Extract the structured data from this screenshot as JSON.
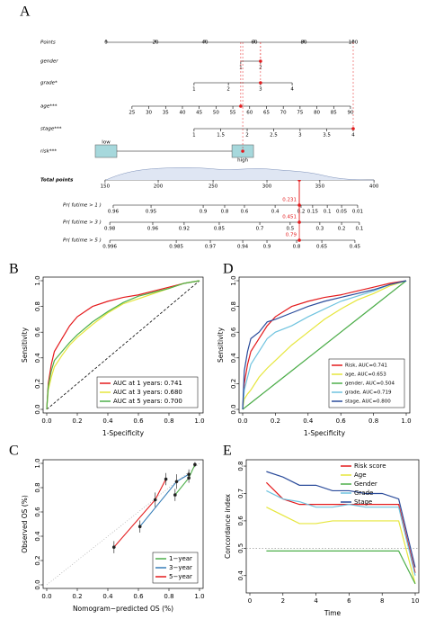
{
  "chart_data": [
    {
      "type": "nomogram",
      "panel": "A",
      "rows": [
        {
          "label": "Points",
          "ticks": [
            0,
            20,
            40,
            60,
            80,
            100
          ],
          "points": [
            0,
            20,
            40,
            60,
            80,
            100
          ]
        },
        {
          "label": "gender",
          "ticks": [
            1,
            2
          ],
          "points": [
            54.5,
            62.5
          ],
          "selected": 62.5
        },
        {
          "label": "grade*",
          "ticks": [
            1,
            2,
            3,
            4
          ],
          "points": [
            35.6,
            49.5,
            62.5,
            75.3
          ],
          "selected": 62.5
        },
        {
          "label": "age***",
          "ticks": [
            25,
            30,
            35,
            40,
            45,
            50,
            55,
            60,
            65,
            70,
            75,
            80,
            85,
            90
          ],
          "points": [
            10.5,
            17.3,
            24.1,
            30.9,
            37.7,
            44.5,
            51.3,
            58.1,
            64.9,
            71.7,
            78.5,
            85.3,
            92.1,
            98.9
          ],
          "selected": 54.5
        },
        {
          "label": "stage***",
          "ticks": [
            1,
            1.5,
            2,
            2.5,
            3,
            3.5,
            4
          ],
          "points": [
            35.6,
            46.4,
            57.1,
            67.8,
            78.5,
            89.3,
            100
          ],
          "selected": 100
        },
        {
          "label": "risk***",
          "ticks": [
            "low",
            "high"
          ],
          "points": [
            0,
            55.3
          ],
          "selected": 55.3,
          "kind": "box"
        },
        {
          "label": "Total points",
          "ticks": [
            150,
            200,
            250,
            300,
            350,
            400
          ],
          "points": [
            -0.4,
            21.1,
            43.3,
            65.1,
            86.5,
            108.4
          ],
          "selected": 78.2
        },
        {
          "label": "Pr( futime > 1 )",
          "ticks": [
            0.96,
            0.95,
            0.9,
            0.8,
            0.6,
            0.4,
            0.2,
            0.15,
            0.1,
            0.05,
            0.01
          ],
          "points": [
            2.9,
            18.2,
            39.3,
            48.0,
            56.0,
            68.4,
            78.9,
            83.6,
            89.5,
            95.3,
            101.8
          ],
          "selected": 78.2,
          "annotation": "0.231"
        },
        {
          "label": "Pr( futime > 3 )",
          "ticks": [
            0.98,
            0.96,
            0.92,
            0.85,
            0.7,
            0.5,
            0.3,
            0.2,
            0.1
          ],
          "points": [
            1.5,
            18.9,
            31.6,
            45.8,
            62.2,
            74.5,
            86.5,
            95.3,
            102.5
          ],
          "selected": 78.2,
          "annotation": "0.451"
        },
        {
          "label": "Pr( futime > 5 )",
          "ticks": [
            0.996,
            0.985,
            0.97,
            0.94,
            0.9,
            0.8,
            0.65,
            0.45
          ],
          "points": [
            1.5,
            28.4,
            42.2,
            55.3,
            65.1,
            77.1,
            87.3,
            100.7
          ],
          "selected": 78.2,
          "annotation": "0.79"
        }
      ]
    },
    {
      "type": "roc",
      "panel": "B",
      "x_label": "1-Specificity",
      "y_label": "Sensitivity",
      "xlim": [
        0,
        1
      ],
      "ylim": [
        0,
        1
      ],
      "xticks": [
        {
          "value": 0,
          "label": "0.0"
        },
        0.2,
        0.4,
        0.6,
        0.8,
        {
          "value": 1,
          "label": "1.0"
        }
      ],
      "yticks": [
        {
          "value": 0,
          "label": "0.0"
        },
        0.2,
        0.4,
        0.6,
        0.8,
        {
          "value": 1,
          "label": "1.0"
        }
      ],
      "diagonal": "dashed",
      "legend": "bottom-right",
      "x": [
        0,
        0.01,
        0.03,
        0.05,
        0.1,
        0.15,
        0.2,
        0.3,
        0.4,
        0.5,
        0.6,
        0.7,
        0.8,
        0.9,
        1
      ],
      "series": [
        {
          "name": "AUC at 1 years: 0.741",
          "color": "#e41a1c",
          "values": [
            0,
            0.2,
            0.35,
            0.45,
            0.55,
            0.65,
            0.72,
            0.8,
            0.84,
            0.87,
            0.89,
            0.92,
            0.95,
            0.98,
            1
          ]
        },
        {
          "name": "AUC at 3 years: 0.680",
          "color": "#e6e63c",
          "values": [
            0,
            0.15,
            0.25,
            0.33,
            0.42,
            0.5,
            0.56,
            0.66,
            0.75,
            0.82,
            0.86,
            0.9,
            0.94,
            0.98,
            1
          ]
        },
        {
          "name": "AUC at 5 years: 0.700",
          "color": "#4daf4a",
          "values": [
            0,
            0.18,
            0.3,
            0.38,
            0.45,
            0.52,
            0.58,
            0.68,
            0.76,
            0.83,
            0.88,
            0.91,
            0.94,
            0.98,
            1
          ]
        }
      ]
    },
    {
      "type": "roc",
      "panel": "D",
      "x_label": "1-Specificity",
      "y_label": "Sensitivity",
      "xlim": [
        0,
        1
      ],
      "ylim": [
        0,
        1
      ],
      "xticks": [
        {
          "value": 0,
          "label": "0.0"
        },
        0.2,
        0.4,
        0.6,
        0.8,
        {
          "value": 1,
          "label": "1.0"
        }
      ],
      "yticks": [
        {
          "value": 0,
          "label": "0.0"
        },
        0.2,
        0.4,
        0.6,
        0.8,
        {
          "value": 1,
          "label": "1.0"
        }
      ],
      "diagonal": "solid",
      "legend": "bottom-right",
      "x": [
        0,
        0.01,
        0.03,
        0.05,
        0.1,
        0.15,
        0.2,
        0.3,
        0.4,
        0.5,
        0.6,
        0.7,
        0.8,
        0.9,
        1
      ],
      "series": [
        {
          "name": "Risk, AUC=0.741",
          "color": "#e41a1c",
          "values": [
            0,
            0.2,
            0.35,
            0.45,
            0.55,
            0.65,
            0.72,
            0.8,
            0.84,
            0.87,
            0.89,
            0.92,
            0.95,
            0.98,
            1
          ]
        },
        {
          "name": "age, AUC=0.653",
          "color": "#e6e63c",
          "values": [
            0,
            0.08,
            0.12,
            0.15,
            0.25,
            0.32,
            0.38,
            0.5,
            0.6,
            0.7,
            0.78,
            0.85,
            0.9,
            0.96,
            1
          ]
        },
        {
          "name": "gender, AUC=0.504",
          "color": "#4daf4a",
          "values": [
            0,
            0.01,
            0.03,
            0.05,
            0.1,
            0.15,
            0.2,
            0.3,
            0.4,
            0.5,
            0.6,
            0.7,
            0.8,
            0.9,
            1
          ]
        },
        {
          "name": "grade, AUC=0.719",
          "color": "#6fc3df",
          "values": [
            0,
            0.15,
            0.25,
            0.35,
            0.45,
            0.55,
            0.6,
            0.65,
            0.72,
            0.78,
            0.84,
            0.88,
            0.92,
            0.97,
            1
          ]
        },
        {
          "name": "stage, AUC=0.800",
          "color": "#2b4c9b",
          "values": [
            0,
            0.3,
            0.45,
            0.55,
            0.6,
            0.68,
            0.7,
            0.75,
            0.8,
            0.84,
            0.87,
            0.9,
            0.93,
            0.97,
            1
          ]
        }
      ]
    },
    {
      "type": "calibration",
      "panel": "C",
      "x_label": "Nomogram−predicted OS (%)",
      "y_label": "Observed OS (%)",
      "xlim": [
        0,
        1
      ],
      "ylim": [
        0,
        1
      ],
      "xticks": [
        {
          "value": 0,
          "label": "0.0"
        },
        0.2,
        0.4,
        0.6,
        0.8,
        {
          "value": 1,
          "label": "1.0"
        }
      ],
      "yticks": [
        {
          "value": 0,
          "label": "0.0"
        },
        0.2,
        0.4,
        0.6,
        0.8,
        {
          "value": 1,
          "label": "1.0"
        }
      ],
      "diagonal": "dotted",
      "legend": "bottom-right",
      "point_color": "#222222",
      "series": [
        {
          "name": "1−year",
          "color": "#4daf4a",
          "x": [
            0.84,
            0.93,
            0.97
          ],
          "values": [
            0.74,
            0.88,
            0.99
          ],
          "errors": [
            0.05,
            0.04,
            0.02
          ]
        },
        {
          "name": "3−year",
          "color": "#377eb8",
          "x": [
            0.61,
            0.85,
            0.93
          ],
          "values": [
            0.48,
            0.85,
            0.91
          ],
          "errors": [
            0.05,
            0.06,
            0.04
          ]
        },
        {
          "name": "5−year",
          "color": "#e41a1c",
          "x": [
            0.44,
            0.71,
            0.78
          ],
          "values": [
            0.31,
            0.7,
            0.87
          ],
          "errors": [
            0.05,
            0.06,
            0.05
          ]
        }
      ]
    },
    {
      "type": "line",
      "panel": "E",
      "x_label": "Time",
      "y_label": "Concordance index",
      "xlim": [
        0,
        10
      ],
      "ylim": [
        0.35,
        0.81
      ],
      "xticks": [
        0,
        2,
        4,
        6,
        8,
        10
      ],
      "yticks": [
        0.4,
        0.5,
        0.6,
        0.7,
        0.8
      ],
      "reference": 0.5,
      "legend": "top-right",
      "x": [
        1,
        2,
        3,
        4,
        5,
        6,
        7,
        8,
        9,
        10
      ],
      "series": [
        {
          "name": "Risk score",
          "color": "#e41a1c",
          "values": [
            0.74,
            0.68,
            0.66,
            0.66,
            0.66,
            0.66,
            0.66,
            0.66,
            0.66,
            0.41
          ]
        },
        {
          "name": "Age",
          "color": "#e6e63c",
          "values": [
            0.65,
            0.62,
            0.59,
            0.59,
            0.6,
            0.6,
            0.6,
            0.6,
            0.6,
            0.37
          ]
        },
        {
          "name": "Gender",
          "color": "#4daf4a",
          "values": [
            0.49,
            0.49,
            0.49,
            0.49,
            0.49,
            0.49,
            0.49,
            0.49,
            0.49,
            0.37
          ]
        },
        {
          "name": "Grade",
          "color": "#6fc3df",
          "values": [
            0.71,
            0.68,
            0.67,
            0.65,
            0.65,
            0.66,
            0.65,
            0.65,
            0.65,
            0.4
          ]
        },
        {
          "name": "Stage",
          "color": "#2b4c9b",
          "values": [
            0.78,
            0.76,
            0.73,
            0.73,
            0.71,
            0.71,
            0.7,
            0.7,
            0.68,
            0.43
          ]
        }
      ]
    }
  ]
}
